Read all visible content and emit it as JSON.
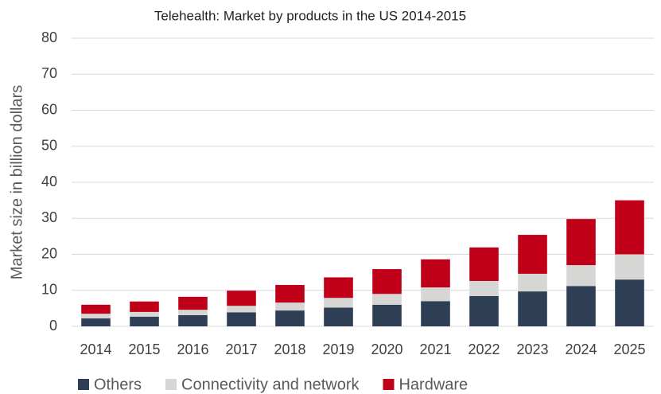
{
  "chart_data": {
    "type": "stacked_bar",
    "title": "Telehealth: Market by products in the US 2014-2015",
    "y_label": "Market size in billion dollars",
    "categories": [
      "2014",
      "2015",
      "2016",
      "2017",
      "2018",
      "2019",
      "2020",
      "2021",
      "2022",
      "2023",
      "2024",
      "2025"
    ],
    "series": [
      {
        "name": "Others",
        "color": "#2e3e55",
        "values": [
          2.2,
          2.7,
          3.1,
          3.9,
          4.4,
          5.2,
          6.0,
          7.0,
          8.4,
          9.7,
          11.2,
          13.0
        ]
      },
      {
        "name": "Connectivity and network",
        "color": "#d6d6d4",
        "values": [
          1.3,
          1.3,
          1.5,
          1.8,
          2.2,
          2.7,
          3.0,
          3.8,
          4.2,
          4.9,
          5.8,
          7.0
        ]
      },
      {
        "name": "Hardware",
        "color": "#c00018",
        "values": [
          2.5,
          2.9,
          3.6,
          4.2,
          4.9,
          5.7,
          6.9,
          7.8,
          9.3,
          10.8,
          12.8,
          15.0
        ]
      }
    ],
    "ylim": [
      0,
      80
    ],
    "yticks": [
      0,
      10,
      20,
      30,
      40,
      50,
      60,
      70,
      80
    ],
    "grid": true,
    "legend": "bottom"
  }
}
